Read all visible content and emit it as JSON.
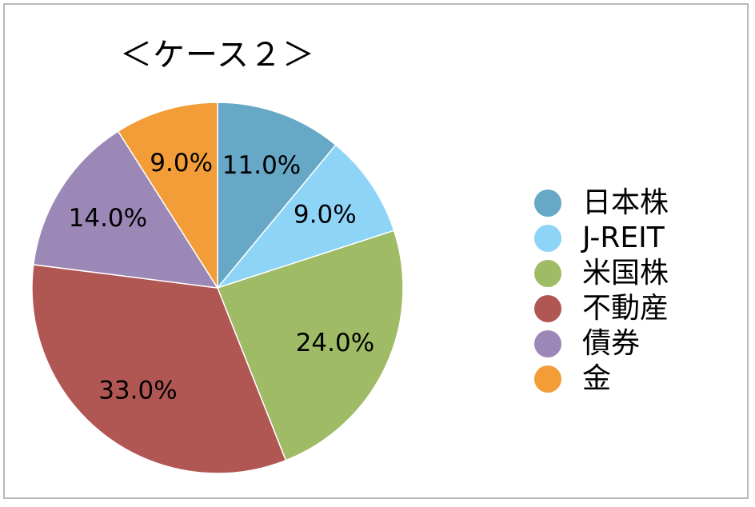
{
  "chart_data": {
    "type": "pie",
    "title": "＜ケース２＞",
    "start_angle_deg": 0,
    "direction": "clockwise",
    "slices": [
      {
        "name": "日本株",
        "value": 11.0,
        "label": "11.0%",
        "color": "#66a8c6"
      },
      {
        "name": "J-REIT",
        "value": 9.0,
        "label": "9.0%",
        "color": "#8dd4f7"
      },
      {
        "name": "米国株",
        "value": 24.0,
        "label": "24.0%",
        "color": "#9fbb66"
      },
      {
        "name": "不動産",
        "value": 33.0,
        "label": "33.0%",
        "color": "#b15753"
      },
      {
        "name": "債券",
        "value": 14.0,
        "label": "14.0%",
        "color": "#9c88b7"
      },
      {
        "name": "金",
        "value": 9.0,
        "label": "9.0%",
        "color": "#f29d38"
      }
    ],
    "legend_position": "right"
  }
}
